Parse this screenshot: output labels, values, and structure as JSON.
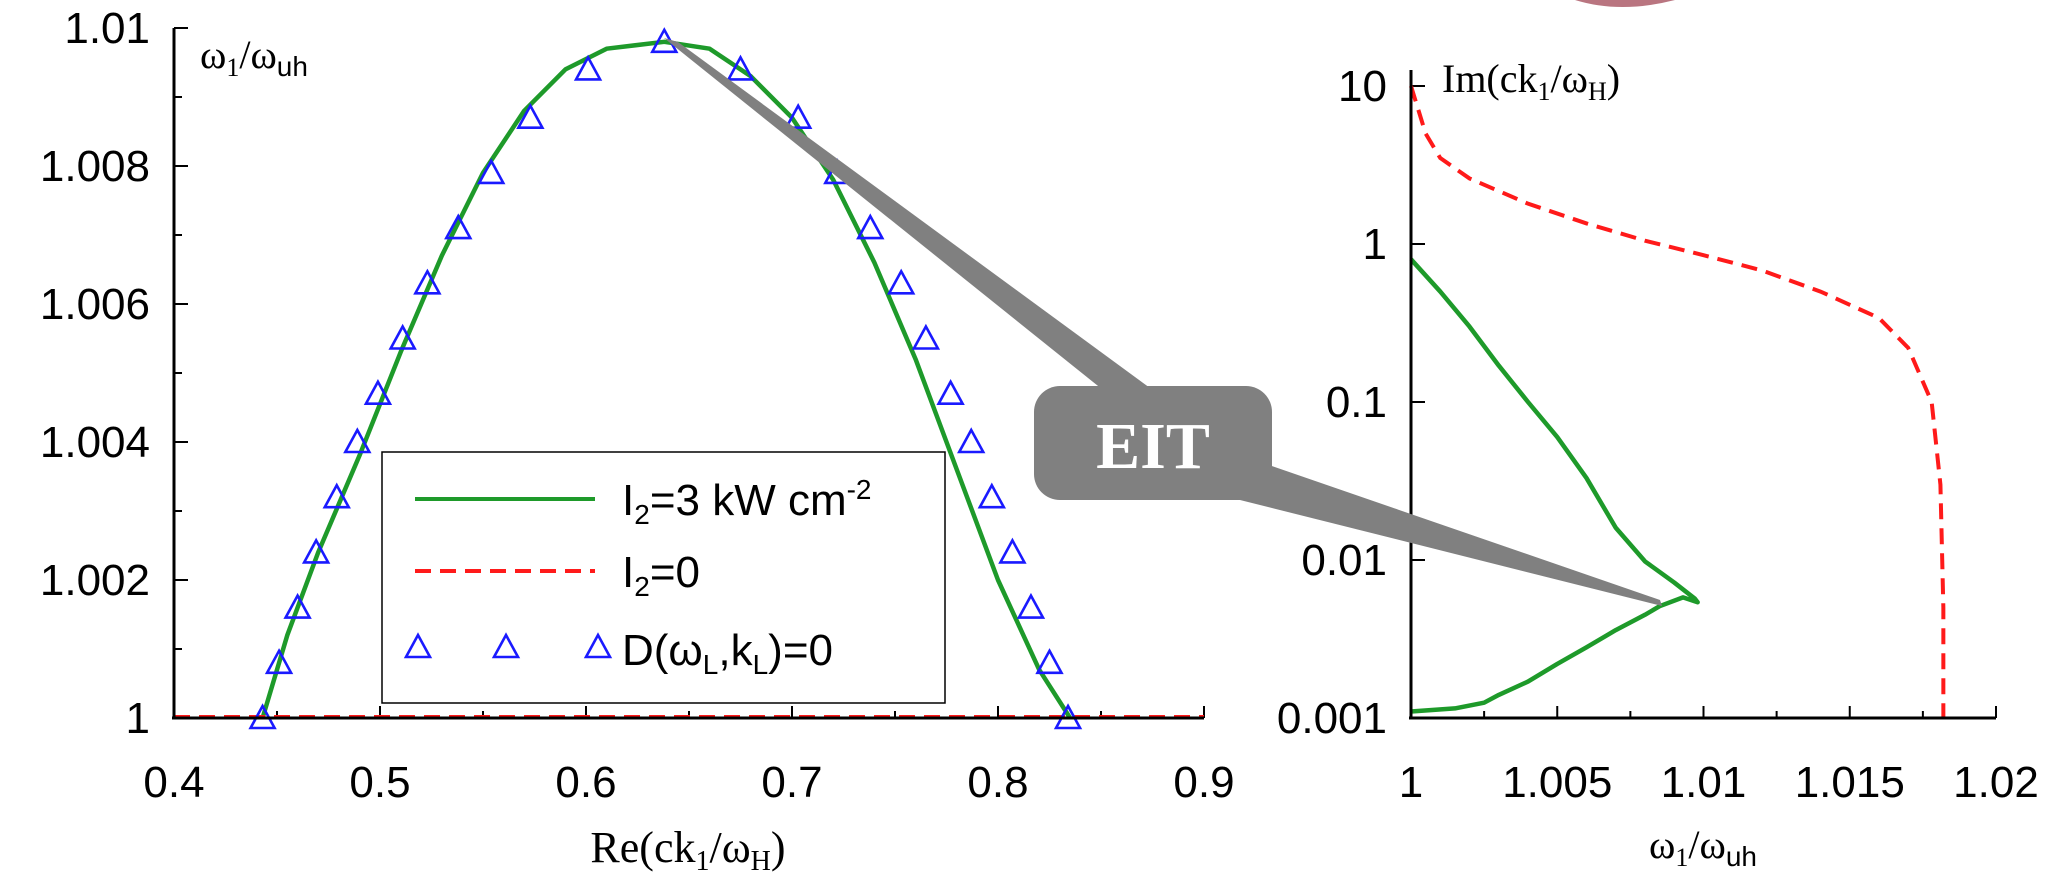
{
  "chart_data": [
    {
      "type": "line",
      "x": {
        "label_main": "Re(ck",
        "label_sub": "1",
        "label_mid": "/ω",
        "label_sub2": "H",
        "label_end": ")",
        "range": [
          0.4,
          0.9
        ],
        "ticks": [
          "0.4",
          "0.5",
          "0.6",
          "0.7",
          "0.8",
          "0.9"
        ],
        "tick_values": [
          0.4,
          0.5,
          0.6,
          0.7,
          0.8,
          0.9
        ]
      },
      "y": {
        "label_main": "ω",
        "label_sub": "1",
        "label_mid": "/ω",
        "label_sub2": "uh",
        "range": [
          1.0,
          1.01
        ],
        "ticks": [
          "1",
          "1.002",
          "1.004",
          "1.006",
          "1.008",
          "1.01"
        ],
        "tick_values": [
          1.0,
          1.002,
          1.004,
          1.006,
          1.008,
          1.01
        ]
      },
      "series": [
        {
          "name": "I2=3 kW cm-2",
          "style": "solid",
          "color": "#1e9a2a",
          "points": [
            [
              0.443,
              1.0
            ],
            [
              0.455,
              1.0012
            ],
            [
              0.47,
              1.0024
            ],
            [
              0.49,
              1.0038
            ],
            [
              0.51,
              1.0053
            ],
            [
              0.53,
              1.0067
            ],
            [
              0.55,
              1.0079
            ],
            [
              0.57,
              1.0088
            ],
            [
              0.59,
              1.0094
            ],
            [
              0.61,
              1.0097
            ],
            [
              0.638,
              1.0098
            ],
            [
              0.66,
              1.0097
            ],
            [
              0.68,
              1.0093
            ],
            [
              0.7,
              1.0087
            ],
            [
              0.72,
              1.0078
            ],
            [
              0.74,
              1.0066
            ],
            [
              0.76,
              1.0052
            ],
            [
              0.78,
              1.0036
            ],
            [
              0.8,
              1.002
            ],
            [
              0.82,
              1.0007
            ],
            [
              0.835,
              1.0
            ]
          ]
        },
        {
          "name": "I2=0",
          "style": "dashed",
          "color": "#ff1a1a",
          "points": [
            [
              0.4,
              1.0
            ],
            [
              0.9,
              1.0
            ]
          ]
        },
        {
          "name": "D(ωL,kL)=0",
          "style": "triangle-markers",
          "color": "#1a1aff",
          "points": [
            [
              0.443,
              1.0
            ],
            [
              0.451,
              1.0008
            ],
            [
              0.46,
              1.0016
            ],
            [
              0.469,
              1.0024
            ],
            [
              0.479,
              1.0032
            ],
            [
              0.489,
              1.004
            ],
            [
              0.499,
              1.0047
            ],
            [
              0.511,
              1.0055
            ],
            [
              0.523,
              1.0063
            ],
            [
              0.538,
              1.0071
            ],
            [
              0.554,
              1.0079
            ],
            [
              0.573,
              1.0087
            ],
            [
              0.601,
              1.0094
            ],
            [
              0.638,
              1.0098
            ],
            [
              0.675,
              1.0094
            ],
            [
              0.703,
              1.0087
            ],
            [
              0.722,
              1.0079
            ],
            [
              0.738,
              1.0071
            ],
            [
              0.753,
              1.0063
            ],
            [
              0.765,
              1.0055
            ],
            [
              0.777,
              1.0047
            ],
            [
              0.787,
              1.004
            ],
            [
              0.797,
              1.0032
            ],
            [
              0.807,
              1.0024
            ],
            [
              0.816,
              1.0016
            ],
            [
              0.825,
              1.0008
            ],
            [
              0.834,
              1.0
            ]
          ]
        }
      ],
      "legend": {
        "placement": "bottom-center",
        "entries": [
          {
            "pre": "I",
            "sub": "2",
            "post": "=3 kW cm",
            "sup": "-2"
          },
          {
            "pre": "I",
            "sub": "2",
            "post": "=0",
            "sup": ""
          },
          {
            "pre": "D(ω",
            "sub": "L",
            "mid": ",k",
            "sub2": "L",
            "post": ")=0"
          }
        ]
      }
    },
    {
      "type": "line",
      "x": {
        "label_main": "ω",
        "label_sub": "1",
        "label_mid": "/ω",
        "label_sub2": "uh",
        "range": [
          1.0,
          1.02
        ],
        "ticks": [
          "1",
          "1.005",
          "1.01",
          "1.015",
          "1.02"
        ],
        "tick_values": [
          1.0,
          1.005,
          1.01,
          1.015,
          1.02
        ]
      },
      "y": {
        "label_main": "Im(ck",
        "label_sub": "1",
        "label_mid": "/ω",
        "label_sub2": "H",
        "label_end": ")",
        "scale": "log",
        "range": [
          0.001,
          10
        ],
        "ticks": [
          "0.001",
          "0.01",
          "0.1",
          "1",
          "10"
        ],
        "tick_values": [
          0.001,
          0.01,
          0.1,
          1,
          10
        ]
      },
      "series": [
        {
          "name": "I2=3 kW cm-2",
          "style": "solid",
          "color": "#1e9a2a",
          "points": [
            [
              1.0,
              0.8
            ],
            [
              1.001,
              0.5
            ],
            [
              1.002,
              0.3
            ],
            [
              1.003,
              0.17
            ],
            [
              1.004,
              0.1
            ],
            [
              1.005,
              0.06
            ],
            [
              1.006,
              0.033
            ],
            [
              1.007,
              0.016
            ],
            [
              1.008,
              0.0098
            ],
            [
              1.009,
              0.0072
            ],
            [
              1.0097,
              0.0057
            ],
            [
              1.0098,
              0.0054
            ],
            [
              1.0093,
              0.0058
            ],
            [
              1.0085,
              0.0051
            ],
            [
              1.008,
              0.0045
            ],
            [
              1.007,
              0.0036
            ],
            [
              1.006,
              0.0028
            ],
            [
              1.005,
              0.0022
            ],
            [
              1.004,
              0.0017
            ],
            [
              1.003,
              0.0014
            ],
            [
              1.0025,
              0.00125
            ],
            [
              1.0015,
              0.00115
            ],
            [
              1.0,
              0.0011
            ]
          ]
        },
        {
          "name": "I2=0",
          "style": "dashed",
          "color": "#ff1a1a",
          "points": [
            [
              1.0,
              10
            ],
            [
              1.0005,
              5
            ],
            [
              1.001,
              3.5
            ],
            [
              1.002,
              2.6
            ],
            [
              1.004,
              1.8
            ],
            [
              1.006,
              1.35
            ],
            [
              1.008,
              1.05
            ],
            [
              1.01,
              0.85
            ],
            [
              1.012,
              0.68
            ],
            [
              1.014,
              0.5
            ],
            [
              1.016,
              0.34
            ],
            [
              1.017,
              0.22
            ],
            [
              1.0178,
              0.1
            ],
            [
              1.0181,
              0.03
            ],
            [
              1.0182,
              0.005
            ],
            [
              1.0182,
              0.001
            ]
          ]
        }
      ]
    }
  ],
  "annotation": {
    "label": "EIT",
    "color": "#808080"
  }
}
